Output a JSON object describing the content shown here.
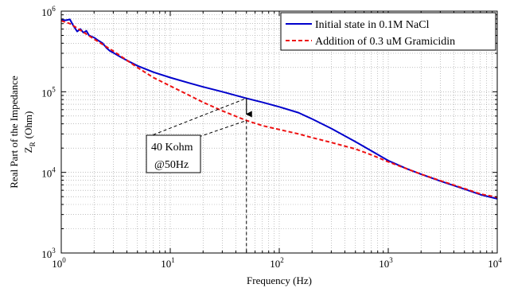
{
  "chart_data": {
    "type": "line",
    "x_scale": "log",
    "y_scale": "log",
    "xlabel": "Frequency (Hz)",
    "ylabel_line1": "Real Part of the Impedance",
    "ylabel_line2_symbol": "Z",
    "ylabel_line2_subscript": "R",
    "ylabel_line2_unit": "(Ohm)",
    "xlim": [
      1,
      10000
    ],
    "ylim": [
      1000,
      1000000
    ],
    "grid": true,
    "legend_position": "top-right",
    "x_ticks": [
      {
        "base": "10",
        "exp": "0"
      },
      {
        "base": "10",
        "exp": "1"
      },
      {
        "base": "10",
        "exp": "2"
      },
      {
        "base": "10",
        "exp": "3"
      },
      {
        "base": "10",
        "exp": "4"
      }
    ],
    "y_ticks": [
      {
        "base": "10",
        "exp": "3"
      },
      {
        "base": "10",
        "exp": "4"
      },
      {
        "base": "10",
        "exp": "5"
      },
      {
        "base": "10",
        "exp": "6"
      }
    ],
    "x_tick_values": [
      1,
      10,
      100,
      1000,
      10000
    ],
    "y_tick_values": [
      1000,
      10000,
      100000,
      1000000
    ],
    "series": [
      {
        "name": "Initial state in 0.1M NaCl",
        "color": "#0000cc",
        "style": "solid",
        "points": [
          [
            1.0,
            780000
          ],
          [
            1.1,
            770000
          ],
          [
            1.2,
            790000
          ],
          [
            1.3,
            650000
          ],
          [
            1.4,
            560000
          ],
          [
            1.5,
            600000
          ],
          [
            1.6,
            540000
          ],
          [
            1.7,
            570000
          ],
          [
            1.8,
            500000
          ],
          [
            2.0,
            470000
          ],
          [
            2.2,
            430000
          ],
          [
            2.4,
            400000
          ],
          [
            2.6,
            350000
          ],
          [
            2.8,
            320000
          ],
          [
            3.0,
            305000
          ],
          [
            3.5,
            270000
          ],
          [
            4.0,
            245000
          ],
          [
            5.0,
            210000
          ],
          [
            7.0,
            175000
          ],
          [
            10.0,
            150000
          ],
          [
            15.0,
            128000
          ],
          [
            20.0,
            115000
          ],
          [
            30.0,
            100000
          ],
          [
            50.0,
            83000
          ],
          [
            70.0,
            74000
          ],
          [
            100.0,
            65000
          ],
          [
            150.0,
            55000
          ],
          [
            200.0,
            46000
          ],
          [
            300.0,
            35000
          ],
          [
            500.0,
            24000
          ],
          [
            700.0,
            18500
          ],
          [
            1000.0,
            14000
          ],
          [
            1500.0,
            11000
          ],
          [
            2000.0,
            9500
          ],
          [
            3000.0,
            7800
          ],
          [
            5000.0,
            6200
          ],
          [
            7000.0,
            5300
          ],
          [
            10000.0,
            4700
          ]
        ]
      },
      {
        "name": "Addition of 0.3 uM Gramicidin",
        "color": "#ee1111",
        "style": "dashed",
        "points": [
          [
            1.0,
            760000
          ],
          [
            1.2,
            700000
          ],
          [
            1.5,
            580000
          ],
          [
            2.0,
            450000
          ],
          [
            3.0,
            320000
          ],
          [
            5.0,
            200000
          ],
          [
            7.0,
            150000
          ],
          [
            10.0,
            118000
          ],
          [
            15.0,
            90000
          ],
          [
            20.0,
            74000
          ],
          [
            30.0,
            58000
          ],
          [
            50.0,
            44000
          ],
          [
            70.0,
            38000
          ],
          [
            100.0,
            34000
          ],
          [
            150.0,
            30000
          ],
          [
            200.0,
            27000
          ],
          [
            300.0,
            23500
          ],
          [
            500.0,
            19500
          ],
          [
            700.0,
            16500
          ],
          [
            1000.0,
            13500
          ],
          [
            1500.0,
            11000
          ],
          [
            2000.0,
            9500
          ],
          [
            3000.0,
            7900
          ],
          [
            5000.0,
            6300
          ],
          [
            7000.0,
            5400
          ],
          [
            10000.0,
            4900
          ]
        ]
      }
    ],
    "annotation": {
      "line1": "40 Kohm",
      "line2": "@50Hz",
      "x": 50,
      "y_top": 83000,
      "y_bottom": 44000
    }
  }
}
